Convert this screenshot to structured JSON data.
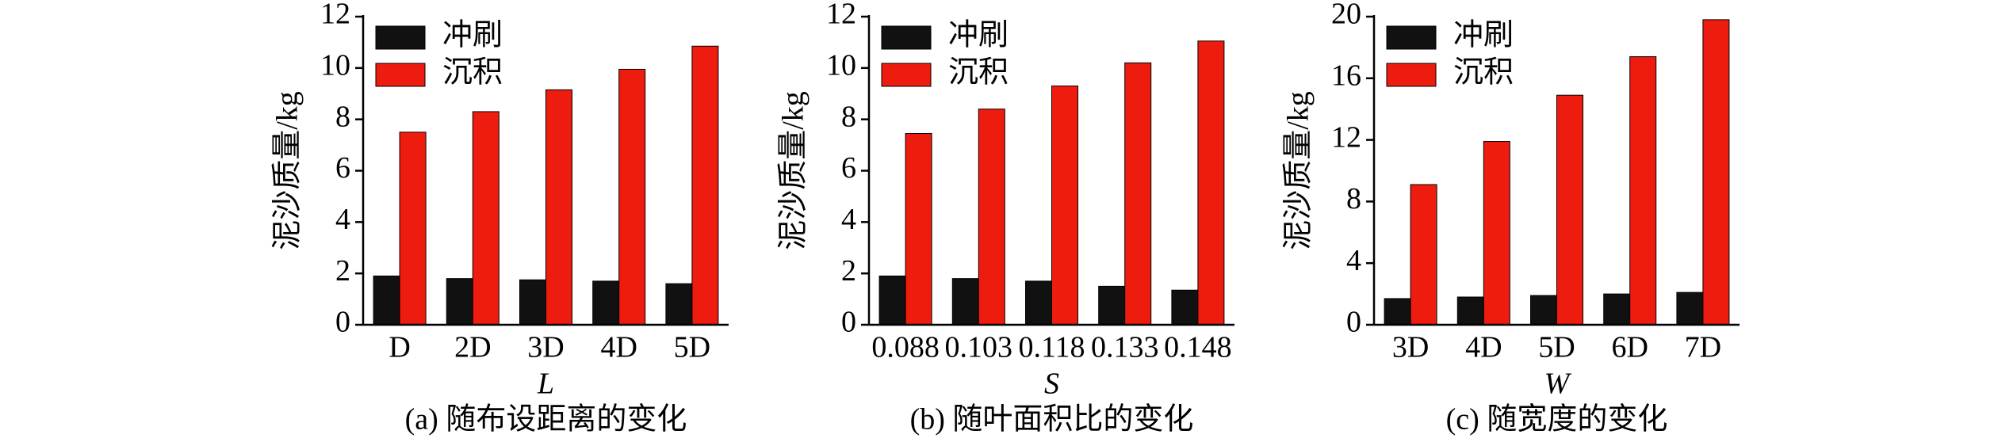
{
  "chart_data": [
    {
      "type": "bar",
      "ylabel": "泥沙质量/kg",
      "xlabel": "L",
      "caption": "(a) 随布设距离的变化",
      "categories": [
        "D",
        "2D",
        "3D",
        "4D",
        "5D"
      ],
      "series": [
        {
          "name": "冲刷",
          "color": "#111111",
          "values": [
            1.9,
            1.8,
            1.75,
            1.7,
            1.6
          ]
        },
        {
          "name": "沉积",
          "color": "#ee1c0e",
          "values": [
            7.5,
            8.3,
            9.15,
            9.95,
            10.85
          ]
        }
      ],
      "ylim": [
        0,
        12
      ],
      "yticks": [
        0,
        2,
        4,
        6,
        8,
        10,
        12
      ]
    },
    {
      "type": "bar",
      "ylabel": "泥沙质量/kg",
      "xlabel": "S",
      "caption": "(b) 随叶面积比的变化",
      "categories": [
        "0.088",
        "0.103",
        "0.118",
        "0.133",
        "0.148"
      ],
      "series": [
        {
          "name": "冲刷",
          "color": "#111111",
          "values": [
            1.9,
            1.8,
            1.7,
            1.5,
            1.35
          ]
        },
        {
          "name": "沉积",
          "color": "#ee1c0e",
          "values": [
            7.45,
            8.4,
            9.3,
            10.2,
            11.05
          ]
        }
      ],
      "ylim": [
        0,
        12
      ],
      "yticks": [
        0,
        2,
        4,
        6,
        8,
        10,
        12
      ]
    },
    {
      "type": "bar",
      "ylabel": "泥沙质量/kg",
      "xlabel": "W",
      "caption": "(c) 随宽度的变化",
      "categories": [
        "3D",
        "4D",
        "5D",
        "6D",
        "7D"
      ],
      "series": [
        {
          "name": "冲刷",
          "color": "#111111",
          "values": [
            1.7,
            1.8,
            1.9,
            2.0,
            2.1
          ]
        },
        {
          "name": "沉积",
          "color": "#ee1c0e",
          "values": [
            9.1,
            11.9,
            14.9,
            17.4,
            19.8
          ]
        }
      ],
      "ylim": [
        0,
        20
      ],
      "yticks": [
        0,
        4,
        8,
        12,
        16,
        20
      ]
    }
  ]
}
